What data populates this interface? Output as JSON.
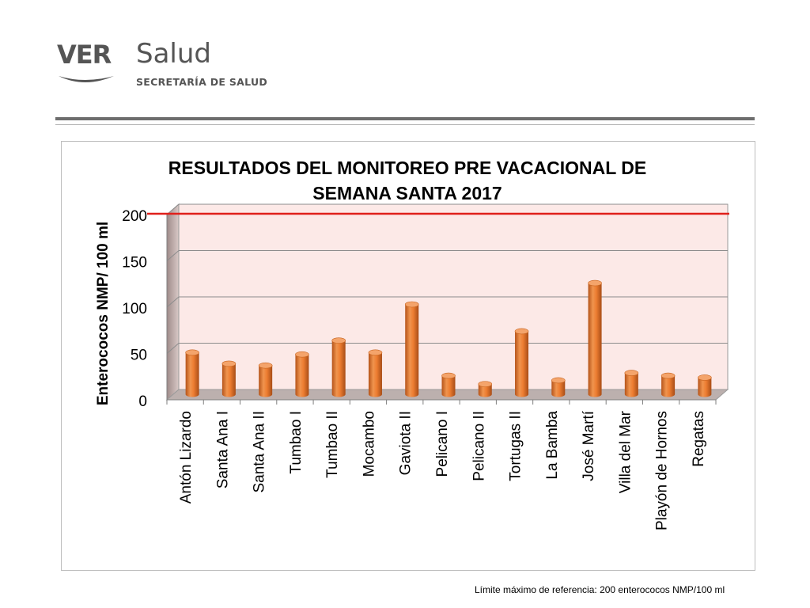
{
  "logo": {
    "brand": "VER",
    "name": "Salud",
    "subtitle": "SECRETARÍA DE SALUD"
  },
  "footnote": "Límite máximo de referencia: 200 enterococos NMP/100 ml",
  "colors": {
    "bar": "#ed7d31",
    "reference_line": "#e0201b",
    "plot_background": "#fce9e7"
  },
  "chart_data": {
    "type": "bar",
    "title": "RESULTADOS DEL MONITOREO PRE VACACIONAL DE SEMANA SANTA 2017",
    "title_lines": [
      "RESULTADOS DEL MONITOREO PRE VACACIONAL DE",
      "SEMANA SANTA 2017"
    ],
    "xlabel": "",
    "ylabel": "Enterococos NMP/ 100 ml",
    "ylim": [
      0,
      200
    ],
    "yticks": [
      0,
      50,
      100,
      150,
      200
    ],
    "grid": true,
    "style": "3d-cylinder",
    "categories": [
      "Antón Lizardo",
      "Santa Ana I",
      "Santa Ana II",
      "Tumbao I",
      "Tumbao II",
      "Mocambo",
      "Gaviota II",
      "Pelicano I",
      "Pelicano II",
      "Tortugas II",
      "La Bamba",
      "José Martí",
      "Villa del Mar",
      "Playón de Hornos",
      "Regatas"
    ],
    "values": [
      45,
      33,
      31,
      43,
      58,
      45,
      97,
      20,
      11,
      68,
      15,
      120,
      23,
      20,
      18
    ],
    "reference_line": {
      "value": 200
    }
  }
}
